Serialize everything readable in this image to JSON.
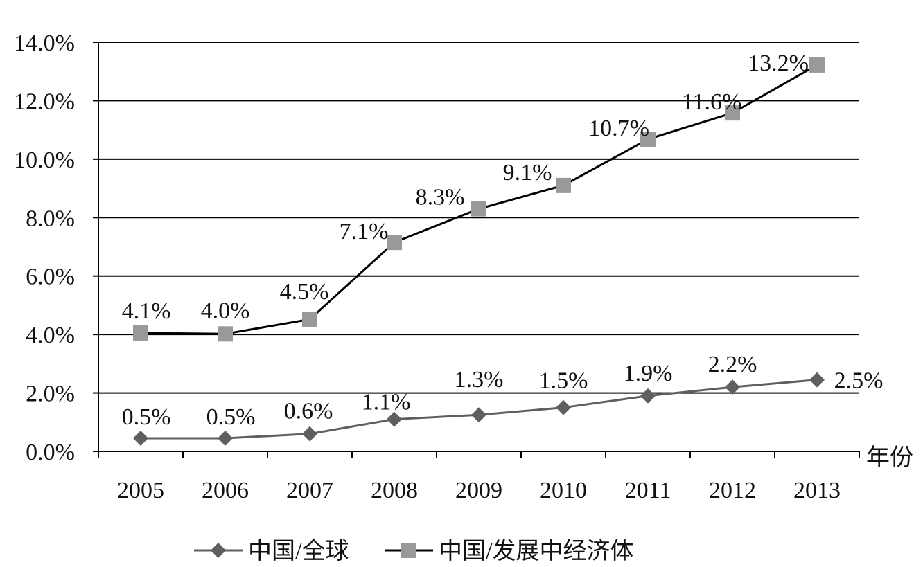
{
  "chart_data": {
    "type": "line",
    "categories": [
      "2005",
      "2006",
      "2007",
      "2008",
      "2009",
      "2010",
      "2011",
      "2012",
      "2013"
    ],
    "series": [
      {
        "name": "中国/全球",
        "values": [
          0.45,
          0.45,
          0.6,
          1.1,
          1.25,
          1.5,
          1.9,
          2.2,
          2.45
        ],
        "labels": [
          "0.5%",
          "0.5%",
          "0.6%",
          "1.1%",
          "1.3%",
          "1.5%",
          "1.9%",
          "2.2%",
          "2.5%"
        ],
        "color": "#5f5f5f",
        "marker": "diamond",
        "marker_color": "#5f5f5f"
      },
      {
        "name": "中国/发展中经济体",
        "values": [
          4.05,
          4.02,
          4.52,
          7.15,
          8.3,
          9.1,
          10.68,
          11.58,
          13.22
        ],
        "labels": [
          "4.1%",
          "4.0%",
          "4.5%",
          "7.1%",
          "8.3%",
          "9.1%",
          "10.7%",
          "11.6%",
          "13.2%"
        ],
        "color": "#000000",
        "marker": "square",
        "marker_color": "#999999"
      }
    ],
    "x_unit_label": "年份",
    "y_ticks": [
      "0.0%",
      "2.0%",
      "4.0%",
      "6.0%",
      "8.0%",
      "10.0%",
      "12.0%",
      "14.0%"
    ],
    "ylim": [
      0,
      14
    ],
    "ytick_step": 2,
    "grid": true,
    "legend_position": "bottom"
  }
}
